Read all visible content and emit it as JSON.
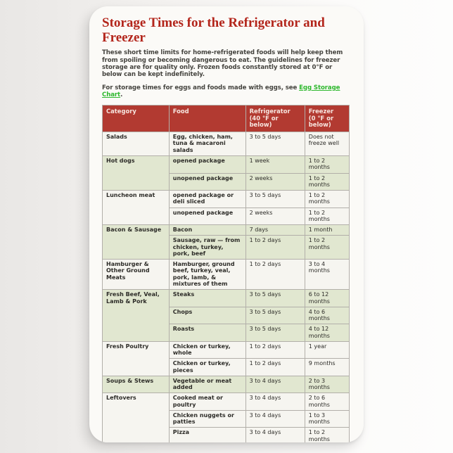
{
  "page": {
    "title": "Storage Times for the Refrigerator and Freezer",
    "intro": "These short time limits for home-refrigerated foods will help keep them from spoiling or becoming dangerous to eat. The guidelines for freezer storage are for quality only. Frozen foods constantly stored at 0°F or below can be kept indefinitely.",
    "egg_note_prefix": "For storage times for eggs and foods made with eggs, see ",
    "egg_link_label": "Egg Storage Chart",
    "egg_note_suffix": "."
  },
  "colors": {
    "title_red": "#b3251b",
    "header_bg": "#b23a31",
    "header_text": "#f7e5df",
    "row_green": "#e1e7d0",
    "row_white": "#f6f5f0",
    "link_green": "#2eb82e",
    "border_gray": "#b2afa9"
  },
  "table": {
    "headers": [
      {
        "label": "Category",
        "sub": ""
      },
      {
        "label": "Food",
        "sub": ""
      },
      {
        "label": "Refrigerator",
        "sub": "(40 °F or below)"
      },
      {
        "label": "Freezer",
        "sub": "(0 °F or below)"
      }
    ],
    "groups": [
      {
        "category": "Salads",
        "tone": "white",
        "rows": [
          {
            "food": "Egg, chicken, ham, tuna & macaroni salads",
            "refrigerator": "3 to 5 days",
            "freezer": "Does not freeze well"
          }
        ]
      },
      {
        "category": "Hot dogs",
        "tone": "green",
        "rows": [
          {
            "food": "opened package",
            "refrigerator": "1 week",
            "freezer": "1 to 2 months"
          },
          {
            "food": "unopened package",
            "refrigerator": "2 weeks",
            "freezer": "1 to 2 months"
          }
        ]
      },
      {
        "category": "Luncheon meat",
        "tone": "white",
        "rows": [
          {
            "food": "opened package or deli sliced",
            "refrigerator": "3 to 5 days",
            "freezer": "1 to 2 months"
          },
          {
            "food": "unopened package",
            "refrigerator": "2 weeks",
            "freezer": "1 to 2 months"
          }
        ]
      },
      {
        "category": "Bacon & Sausage",
        "tone": "green",
        "rows": [
          {
            "food": "Bacon",
            "refrigerator": "7 days",
            "freezer": "1 month"
          },
          {
            "food": "Sausage, raw — from chicken, turkey, pork, beef",
            "refrigerator": "1 to 2 days",
            "freezer": "1 to 2 months"
          }
        ]
      },
      {
        "category": "Hamburger & Other Ground Meats",
        "tone": "white",
        "rows": [
          {
            "food": "Hamburger, ground beef, turkey, veal, pork, lamb, & mixtures of them",
            "refrigerator": "1 to 2 days",
            "freezer": "3 to 4 months"
          }
        ]
      },
      {
        "category": "Fresh Beef, Veal, Lamb & Pork",
        "tone": "green",
        "rows": [
          {
            "food": "Steaks",
            "refrigerator": "3 to 5 days",
            "freezer": "6 to 12 months"
          },
          {
            "food": "Chops",
            "refrigerator": "3 to 5 days",
            "freezer": "4 to 6 months"
          },
          {
            "food": "Roasts",
            "refrigerator": "3 to 5 days",
            "freezer": "4 to 12 months"
          }
        ]
      },
      {
        "category": "Fresh Poultry",
        "tone": "white",
        "rows": [
          {
            "food": "Chicken or turkey, whole",
            "refrigerator": "1 to 2 days",
            "freezer": "1 year"
          },
          {
            "food": "Chicken or turkey, pieces",
            "refrigerator": "1 to 2 days",
            "freezer": "9 months"
          }
        ]
      },
      {
        "category": "Soups & Stews",
        "tone": "green",
        "rows": [
          {
            "food": "Vegetable or meat added",
            "refrigerator": "3 to 4 days",
            "freezer": "2 to 3 months"
          }
        ]
      },
      {
        "category": "Leftovers",
        "tone": "white",
        "rows": [
          {
            "food": "Cooked meat or poultry",
            "refrigerator": "3 to 4 days",
            "freezer": "2 to 6 months"
          },
          {
            "food": "Chicken nuggets or patties",
            "refrigerator": "3 to 4 days",
            "freezer": "1 to 3 months"
          },
          {
            "food": "Pizza",
            "refrigerator": "3 to 4 days",
            "freezer": "1 to 2 months"
          }
        ]
      }
    ]
  }
}
